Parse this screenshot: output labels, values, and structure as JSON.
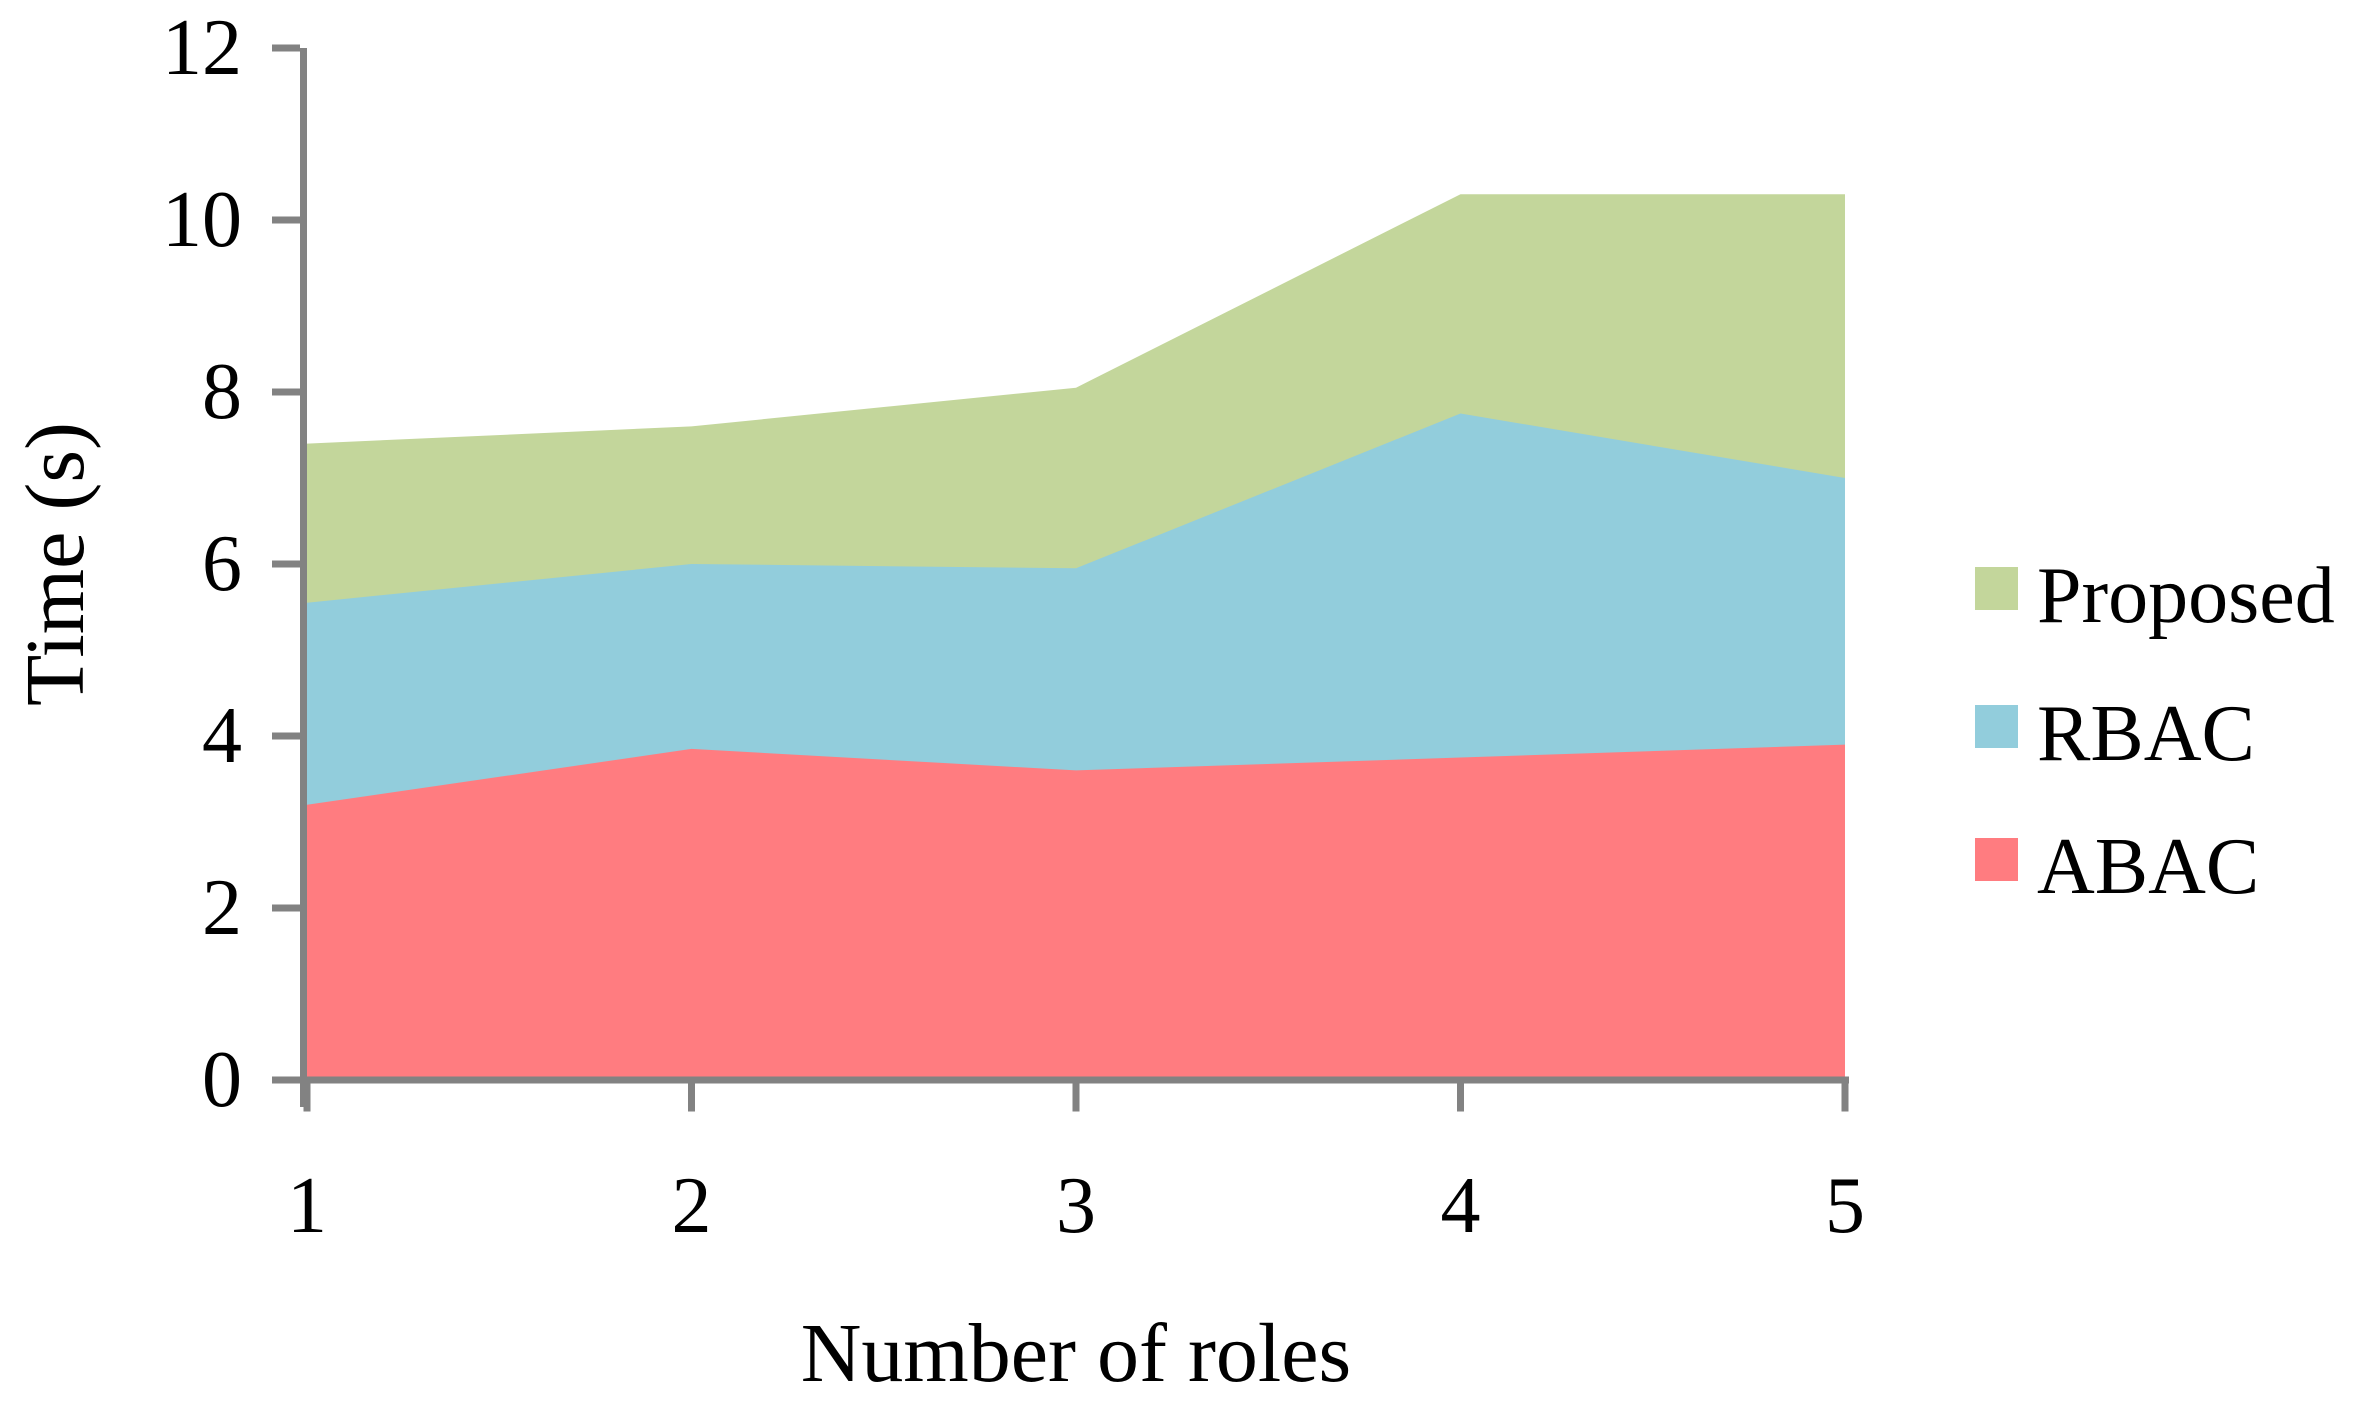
{
  "chart_data": {
    "type": "area",
    "stacked": true,
    "title": "",
    "xlabel": "Number of roles",
    "ylabel": "Time (s)",
    "x": [
      1,
      2,
      3,
      4,
      5
    ],
    "xtick_labels": [
      "1",
      "2",
      "3",
      "4",
      "5"
    ],
    "yticks": [
      0,
      2,
      4,
      6,
      8,
      10,
      12
    ],
    "ytick_labels": [
      "0",
      "2",
      "4",
      "6",
      "8",
      "10",
      "12"
    ],
    "ylim": [
      0,
      12
    ],
    "xlim": [
      1,
      5
    ],
    "grid": false,
    "legend_position": "right-center",
    "series": [
      {
        "name": "ABAC",
        "color": "#FF7C80",
        "values": [
          3.2,
          3.85,
          3.6,
          3.75,
          3.9
        ]
      },
      {
        "name": "RBAC",
        "color": "#92CDDC",
        "values": [
          2.35,
          2.15,
          2.35,
          4.0,
          3.1
        ]
      },
      {
        "name": "Proposed",
        "color": "#C3D69B",
        "values": [
          1.85,
          1.6,
          2.1,
          2.55,
          3.3
        ]
      }
    ],
    "legend_order_top_to_bottom": [
      "Proposed",
      "RBAC",
      "ABAC"
    ],
    "cumulative_tops": {
      "ABAC": [
        3.2,
        3.85,
        3.6,
        3.75,
        3.9
      ],
      "ABAC_plus_RBAC": [
        5.55,
        6.0,
        5.95,
        7.75,
        7.0
      ],
      "total": [
        7.4,
        7.6,
        8.05,
        10.3,
        10.3
      ]
    },
    "colors": {
      "axis": "#828282",
      "text": "#000000",
      "background": "#ffffff"
    }
  }
}
